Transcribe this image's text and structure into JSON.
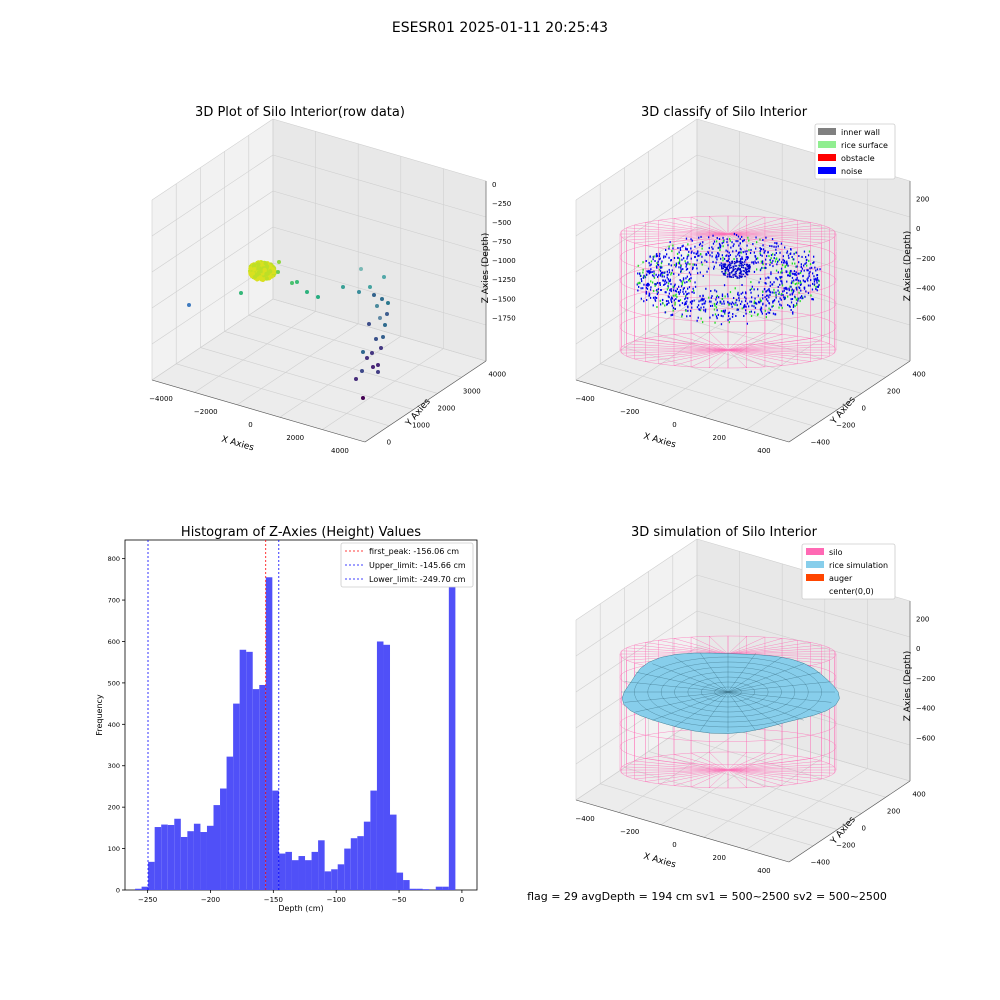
{
  "figure": {
    "suptitle": "ESESR01 2025-01-11 20:25:43",
    "footer": "flag = 29  avgDepth = 194 cm  sv1 = 500~2500  sv2 = 500~2500"
  },
  "colors": {
    "inner_wall": "#808080",
    "rice_surface": "#90ee90",
    "obstacle": "#ff0000",
    "noise": "#0000ff",
    "silo": "#ff69b4",
    "rice_simulation": "#87ceeb",
    "auger": "#ff4500",
    "histogram_bar": "#5050f8",
    "first_peak_line": "#ff0000",
    "limit_lines": "#0000ff"
  },
  "chart_data": [
    {
      "type": "scatter",
      "title": "3D Plot of Silo Interior(row data)",
      "xlabel": "X Axies",
      "ylabel": "Y Axies",
      "zlabel": "Z Axies (Depth)",
      "xticks": [
        "−4000",
        "−2000",
        "0",
        "2000",
        "4000"
      ],
      "yticks": [
        "0",
        "1000",
        "2000",
        "3000",
        "4000"
      ],
      "zticks": [
        "0",
        "−250",
        "−500",
        "−750",
        "−1000",
        "−1250",
        "−1500",
        "−1750"
      ],
      "points_note_colormap": "viridis"
    },
    {
      "type": "scatter",
      "title": "3D classify of Silo Interior",
      "xlabel": "X Axies",
      "ylabel": "Y Axies",
      "zlabel": "Z Axies (Depth)",
      "xticks": [
        "−400",
        "−200",
        "0",
        "200",
        "400"
      ],
      "yticks": [
        "−400",
        "−200",
        "0",
        "200",
        "400"
      ],
      "zticks": [
        "200",
        "0",
        "−200",
        "−400",
        "−600"
      ],
      "legend": [
        "inner wall",
        "rice surface",
        "obstacle",
        "noise"
      ],
      "legend_position": "top-right"
    },
    {
      "type": "bar",
      "title": "Histogram of Z-Axies (Height) Values",
      "xlabel": "Depth (cm)",
      "ylabel": "Frequency",
      "xlim": [
        -268,
        12
      ],
      "ylim": [
        0,
        845
      ],
      "xticks": [
        -250,
        -200,
        -150,
        -100,
        -50,
        0
      ],
      "xtick_labels": [
        "−250",
        "−200",
        "−150",
        "−100",
        "−50",
        "0"
      ],
      "yticks": [
        0,
        100,
        200,
        300,
        400,
        500,
        600,
        700,
        800
      ],
      "bin_start": -260,
      "bin_width": 5.2,
      "values": [
        3,
        8,
        68,
        152,
        158,
        157,
        172,
        128,
        142,
        160,
        140,
        155,
        205,
        245,
        322,
        450,
        580,
        575,
        485,
        495,
        755,
        240,
        88,
        92,
        72,
        82,
        72,
        92,
        120,
        45,
        50,
        62,
        100,
        125,
        130,
        165,
        240,
        600,
        592,
        182,
        42,
        24,
        3,
        3,
        2,
        0,
        8,
        8,
        800
      ],
      "vlines": [
        {
          "x": -156.06,
          "label": "first_peak: -156.06 cm",
          "color": "#ff0000"
        },
        {
          "x": -145.66,
          "label": "Upper_limit: -145.66 cm",
          "color": "#0000ff"
        },
        {
          "x": -249.7,
          "label": "Lower_limit: -249.70 cm",
          "color": "#0000ff"
        }
      ],
      "legend_position": "top-right"
    },
    {
      "type": "area",
      "title": "3D simulation of Silo Interior",
      "xlabel": "X Axies",
      "ylabel": "Y Axies",
      "zlabel": "Z Axies (Depth)",
      "xticks": [
        "−400",
        "−200",
        "0",
        "200",
        "400"
      ],
      "yticks": [
        "−400",
        "−200",
        "0",
        "200",
        "400"
      ],
      "zticks": [
        "200",
        "0",
        "−200",
        "−400",
        "−600"
      ],
      "legend": [
        "silo",
        "rice simulation",
        "auger",
        "center(0,0)"
      ],
      "legend_position": "top-right"
    }
  ]
}
